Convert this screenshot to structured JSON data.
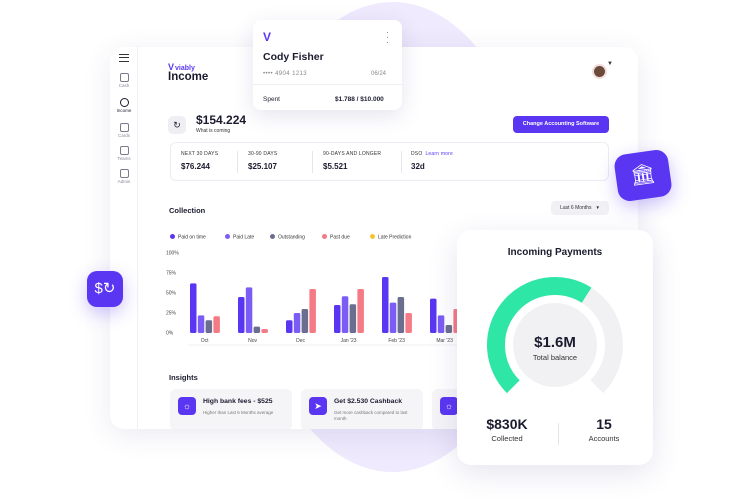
{
  "app": {
    "brand": "viably",
    "page_title": "Income"
  },
  "sidebar": {
    "items": [
      {
        "label": "Cash",
        "icon": "building-icon",
        "active": false
      },
      {
        "label": "Income",
        "icon": "income-icon",
        "active": true
      },
      {
        "label": "Cards",
        "icon": "card-icon",
        "active": false
      },
      {
        "label": "Teams",
        "icon": "team-icon",
        "active": false
      },
      {
        "label": "Admin",
        "icon": "admin-icon",
        "active": false
      }
    ]
  },
  "balance": {
    "amount": "$154.224",
    "subtitle": "What is coming",
    "button_label": "Change Accounting Software"
  },
  "stats": [
    {
      "label": "NEXT 30 DAYS",
      "value": "$76.244"
    },
    {
      "label": "30-90 DAYS",
      "value": "$25.107"
    },
    {
      "label": "90-DAYS AND LONGER",
      "value": "$5.521"
    },
    {
      "label": "DSO",
      "link": "Learn more",
      "value": "32d"
    }
  ],
  "collection": {
    "title": "Collection",
    "period": "Last 6 Months"
  },
  "chart_data": {
    "type": "bar",
    "categories": [
      "Oct",
      "Nov",
      "Dec",
      "Jan '23",
      "Feb '23",
      "Mar '23"
    ],
    "yticks": [
      "0%",
      "25%",
      "50%",
      "75%",
      "100%"
    ],
    "ylim": [
      0,
      100
    ],
    "series": [
      {
        "name": "Paid on time",
        "color": "#5a36f2",
        "values": [
          62,
          45,
          16,
          35,
          70,
          43
        ]
      },
      {
        "name": "Paid Late",
        "color": "#7b5cf5",
        "values": [
          22,
          57,
          25,
          46,
          38,
          22
        ]
      },
      {
        "name": "Outstanding",
        "color": "#6b6f8f",
        "values": [
          16,
          8,
          30,
          36,
          45,
          10
        ]
      },
      {
        "name": "Past due",
        "color": "#f47a85",
        "values": [
          21,
          5,
          55,
          55,
          25,
          30
        ]
      },
      {
        "name": "Late Prediction",
        "color": "#f4c430",
        "values": [
          0,
          0,
          0,
          0,
          0,
          0
        ]
      }
    ]
  },
  "insights": {
    "title": "Insights",
    "items": [
      {
        "title": "High bank fees - $525",
        "desc": "Higher than Last 6 Months average",
        "icon": "lightbulb-icon"
      },
      {
        "title": "Get $2.530 Cashback",
        "desc": "Get more cashback compared to last month",
        "icon": "bolt-icon"
      },
      {
        "title": "",
        "desc": "",
        "icon": "lightbulb-icon"
      }
    ]
  },
  "card": {
    "holder": "Cody Fisher",
    "number": "•••• 4904 1213",
    "expiry": "06/24",
    "spent_label": "Spent",
    "spent_value": "$1.788 / $10.000"
  },
  "payments": {
    "title": "Incoming Payments",
    "total_value": "$1.6M",
    "total_label": "Total balance",
    "progress": 0.62,
    "colors": {
      "accent": "#2ee6a6",
      "track": "#f1f1f4"
    },
    "collected_value": "$830K",
    "collected_label": "Collected",
    "accounts_value": "15",
    "accounts_label": "Accounts"
  }
}
